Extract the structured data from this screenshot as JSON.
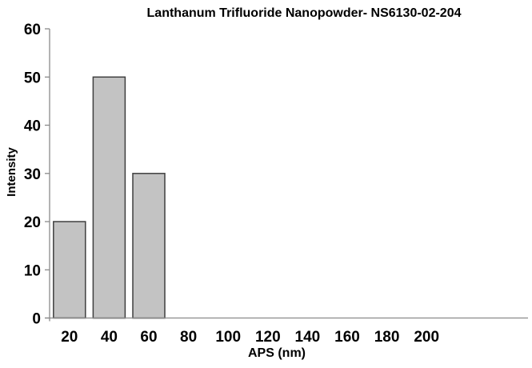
{
  "chart_data": {
    "type": "bar",
    "title": "Lanthanum Trifluoride Nanopowder- NS6130-02-204",
    "xlabel": "APS (nm)",
    "ylabel": "Intensity",
    "categories": [
      20,
      40,
      60,
      80,
      100,
      120,
      140,
      160,
      180,
      200
    ],
    "values": [
      20,
      50,
      30,
      0,
      0,
      0,
      0,
      0,
      0,
      0
    ],
    "ylim": [
      0,
      60
    ],
    "ytick_step": 10,
    "yticks": [
      0,
      10,
      20,
      30,
      40,
      50,
      60
    ],
    "grid": false,
    "legend_position": "none",
    "colors": {
      "bar_fill": "#c3c3c3",
      "bar_border": "#3f3f3f",
      "axis": "#8a8a8a",
      "text": "#000000",
      "background": "#ffffff"
    }
  }
}
